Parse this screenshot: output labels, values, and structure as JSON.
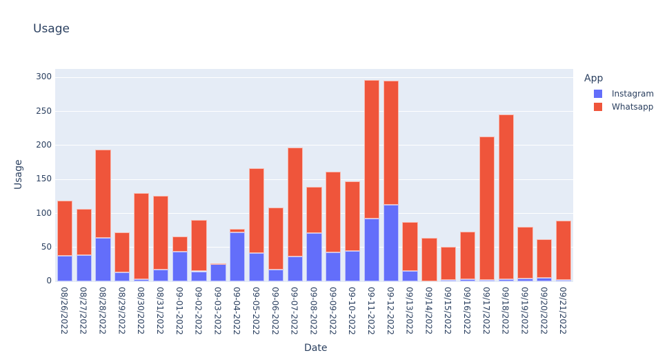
{
  "chart_data": {
    "type": "bar",
    "barmode": "stack",
    "title": "Usage",
    "xlabel": "Date",
    "ylabel": "Usage",
    "ylim": [
      0,
      310
    ],
    "yticks": [
      0,
      50,
      100,
      150,
      200,
      250,
      300
    ],
    "grid": true,
    "legend": {
      "title": "App",
      "position": "right"
    },
    "categories": [
      "08/26/2022",
      "08/27/2022",
      "08/28/2022",
      "08/29/2022",
      "08/30/2022",
      "08/31/2022",
      "09-01-2022",
      "09-02-2022",
      "09-03-2022",
      "09-04-2022",
      "09-05-2022",
      "09-06-2022",
      "09-07-2022",
      "09-08-2022",
      "09-09-2022",
      "09-10-2022",
      "09-11-2022",
      "09-12-2022",
      "09/13/2022",
      "09/14/2022",
      "09/15/2022",
      "09/16/2022",
      "09/17/2022",
      "09/18/2022",
      "09/19/2022",
      "09/20/2022",
      "09/21/2022"
    ],
    "series": [
      {
        "name": "Instagram",
        "color": "#636efa",
        "values": [
          38,
          39,
          64,
          13,
          3,
          18,
          44,
          15,
          26,
          72,
          42,
          18,
          37,
          71,
          43,
          45,
          93,
          113,
          16,
          0,
          2,
          3,
          2,
          3,
          4,
          5,
          2
        ]
      },
      {
        "name": "Whatsapp",
        "color": "#ef553b",
        "values": [
          81,
          68,
          130,
          59,
          127,
          108,
          22,
          76,
          1,
          5,
          125,
          91,
          160,
          68,
          118,
          102,
          203,
          182,
          71,
          64,
          49,
          70,
          211,
          243,
          76,
          57,
          88
        ]
      }
    ]
  },
  "header": {
    "title": "Usage"
  },
  "axes": {
    "x_title": "Date",
    "y_title": "Usage"
  },
  "legend": {
    "title": "App",
    "items": [
      {
        "label": "Instagram",
        "color": "#636efa"
      },
      {
        "label": "Whatsapp",
        "color": "#ef553b"
      }
    ]
  }
}
